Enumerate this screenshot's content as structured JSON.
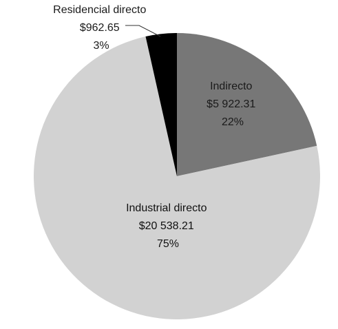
{
  "chart_data": {
    "type": "pie",
    "slices": [
      {
        "label": "Indirecto",
        "amount": "$5 922.31",
        "percent": "22%",
        "value": 5922.31,
        "color": "#777777"
      },
      {
        "label": "Industrial directo",
        "amount": "$20 538.21",
        "percent": "75%",
        "value": 20538.21,
        "color": "#d2d2d2"
      },
      {
        "label": "Residencial directo",
        "amount": "$962.65",
        "percent": "3%",
        "value": 962.65,
        "color": "#000000"
      }
    ],
    "legend": "none"
  }
}
